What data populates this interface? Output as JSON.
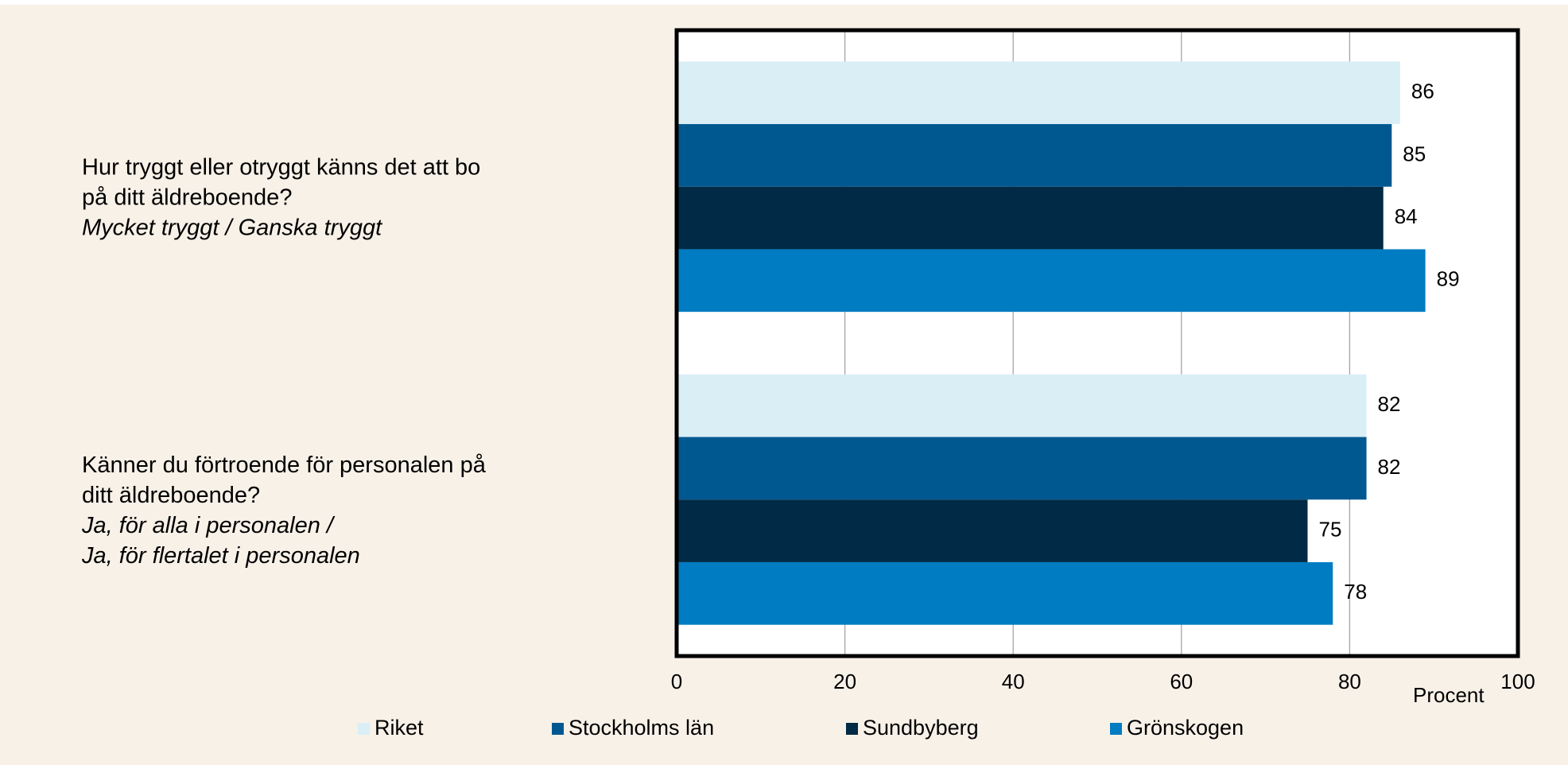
{
  "chart_data": {
    "type": "hbar",
    "categories": [
      [
        "Hur tryggt eller otryggt känns det att bo",
        "på ditt äldreboende?"
      ],
      [
        "Känner du förtroende för personalen på",
        "ditt äldreboende?"
      ]
    ],
    "category_answers": [
      [
        "Mycket tryggt / Ganska tryggt"
      ],
      [
        "Ja, för alla i personalen /",
        "Ja, för flertalet i personalen"
      ]
    ],
    "series": [
      {
        "name": "Riket",
        "color": "#daeef6",
        "values": [
          86,
          82
        ]
      },
      {
        "name": "Stockholms län",
        "color": "#005891",
        "values": [
          85,
          82
        ]
      },
      {
        "name": "Sundbyberg",
        "color": "#002a45",
        "values": [
          84,
          75
        ]
      },
      {
        "name": "Grönskogen",
        "color": "#007cc2",
        "values": [
          89,
          78
        ]
      }
    ],
    "xlabel": "Procent",
    "xlim": [
      0,
      100
    ],
    "xticks": [
      0,
      20,
      40,
      60,
      80,
      100
    ],
    "grid": true,
    "legend": "bottom"
  }
}
